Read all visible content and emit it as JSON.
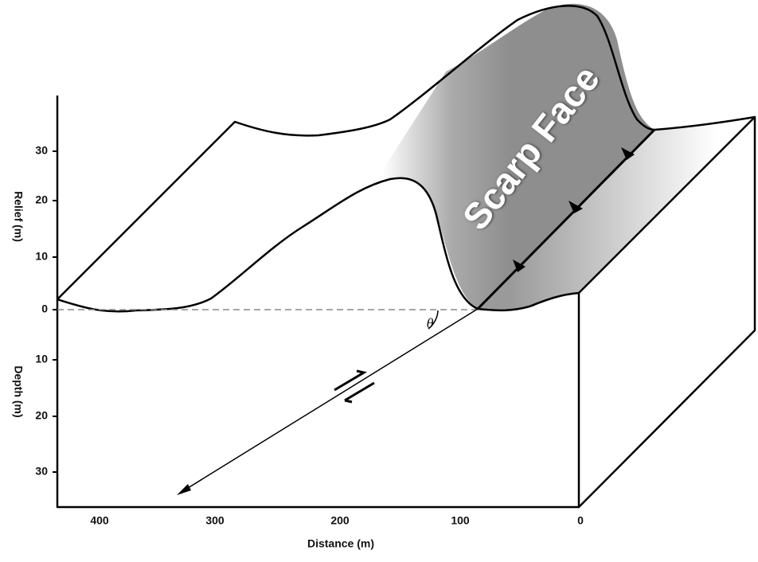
{
  "axes": {
    "relief_label": "Relief (m)",
    "depth_label": "Depth (m)",
    "distance_label": "Distance (m)",
    "relief_ticks": [
      0,
      10,
      20,
      30
    ],
    "depth_ticks": [
      10,
      20,
      30
    ],
    "distance_ticks": [
      400,
      300,
      200,
      100,
      0
    ]
  },
  "labels": {
    "scarp": "Scarp Face",
    "angle": "θ"
  }
}
